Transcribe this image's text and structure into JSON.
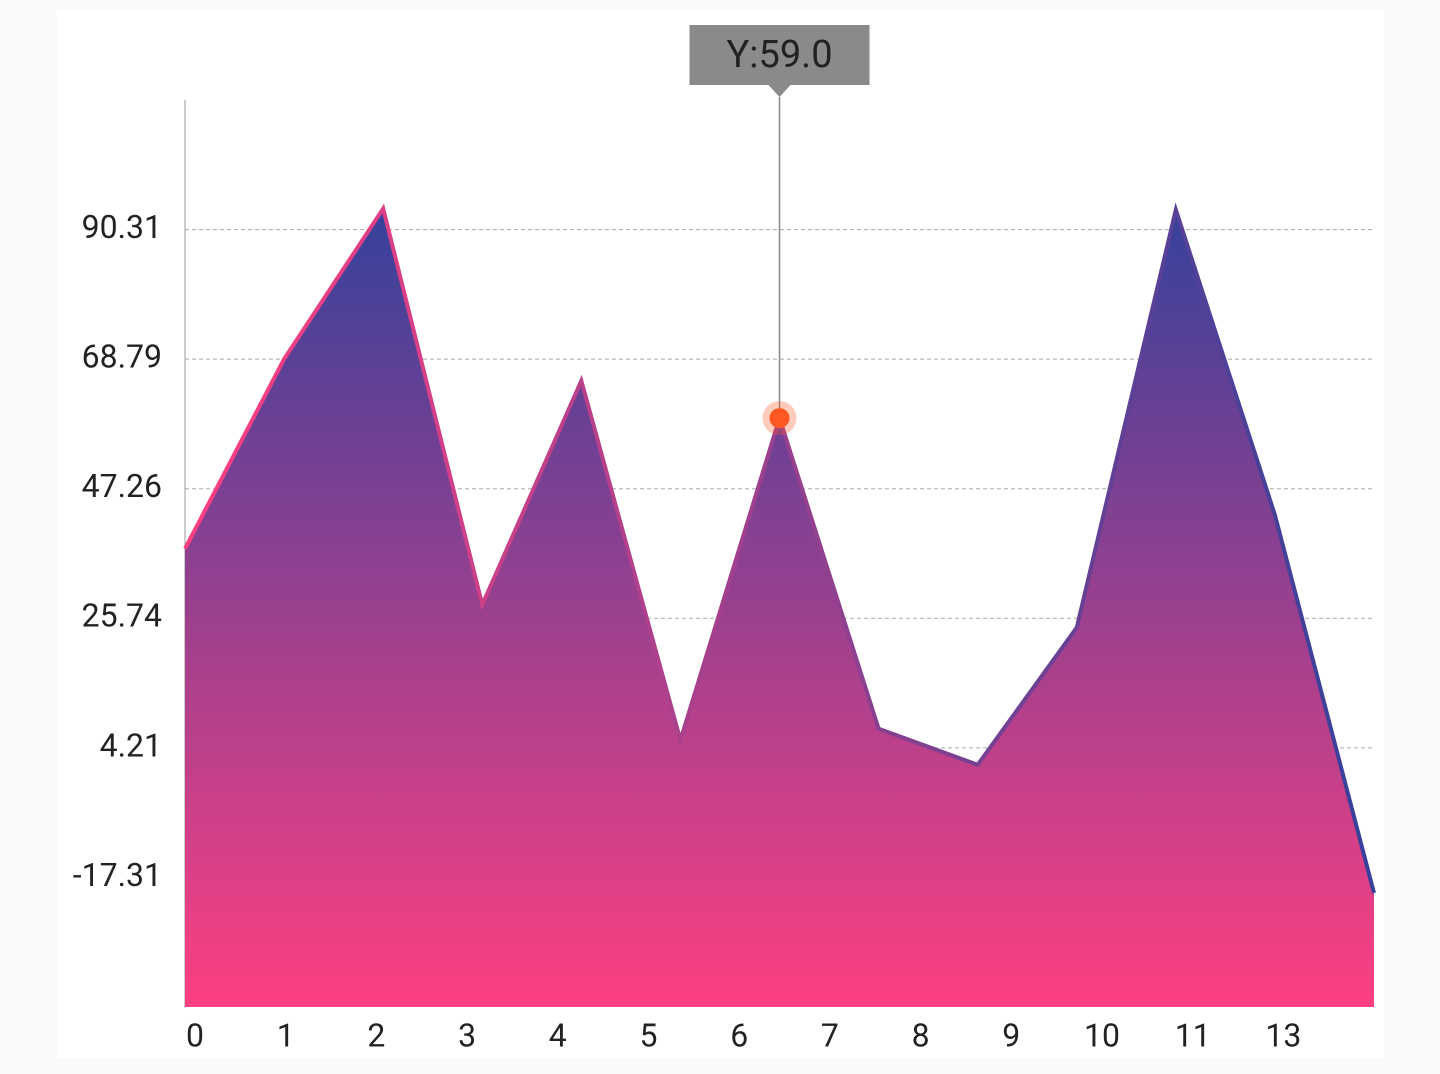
{
  "chart_data": {
    "type": "area",
    "categories": [
      "0",
      "1",
      "2",
      "3",
      "4",
      "5",
      "6",
      "7",
      "8",
      "9",
      "10",
      "11",
      "13"
    ],
    "values": [
      37.3,
      68.8,
      93.8,
      28.0,
      65.2,
      5.5,
      59.0,
      7.4,
      1.4,
      24.2,
      93.6,
      42.9,
      -19.9
    ],
    "ylim": [
      -38.84,
      111.84
    ],
    "yticks": [
      -17.31,
      4.21,
      25.74,
      47.26,
      68.79,
      90.31
    ],
    "grid": true,
    "gradient": [
      "#35419b",
      "#fe3f82"
    ],
    "highlight_index": 6,
    "tooltip": "Y:59.0"
  }
}
